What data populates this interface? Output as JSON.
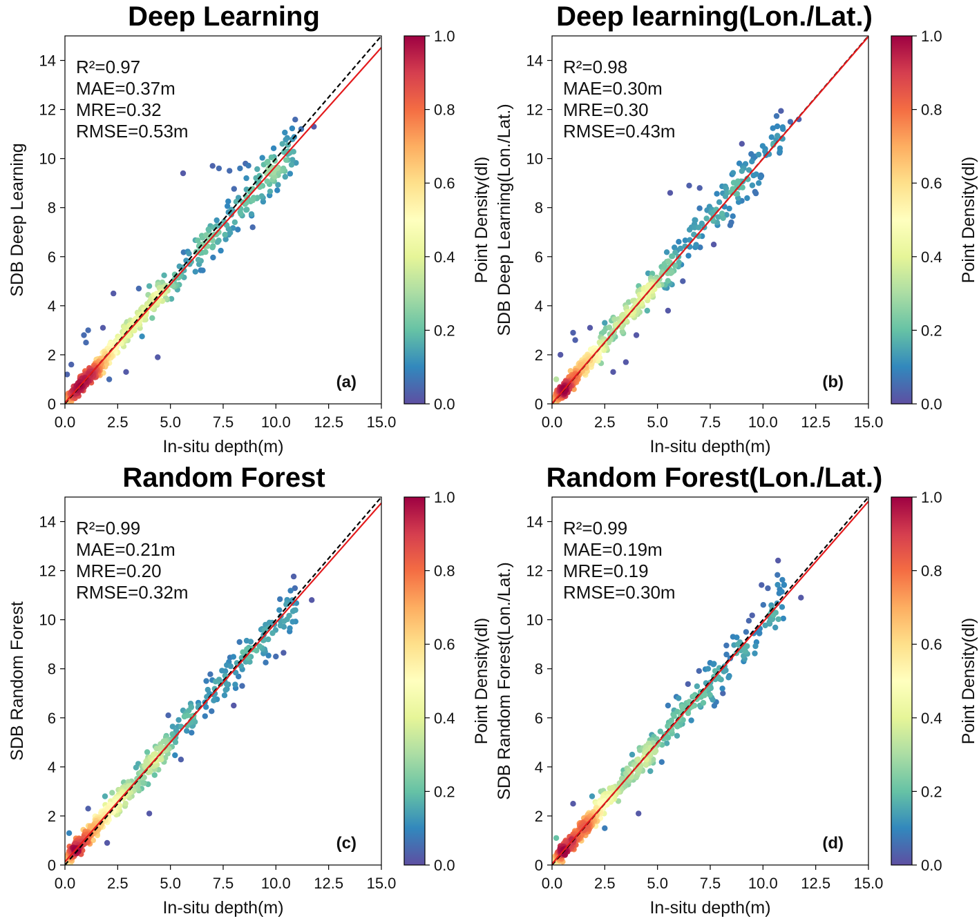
{
  "colorbar": {
    "label": "Point Density(dl)",
    "ticks": [
      "0.0",
      "0.2",
      "0.4",
      "0.6",
      "0.8",
      "1.0"
    ],
    "colors": [
      "#5e4fa2",
      "#3288bd",
      "#66c2a5",
      "#abdda4",
      "#e6f598",
      "#ffffbf",
      "#fee08b",
      "#fdae61",
      "#f46d43",
      "#d53e4f",
      "#9e0142"
    ]
  },
  "line_colors": {
    "fit": "#e31a1c",
    "identity": "#000000"
  },
  "chart_data": [
    {
      "type": "scatter",
      "title": "Deep Learning",
      "panel_label": "(a)",
      "xlabel": "In-situ depth(m)",
      "ylabel": "SDB Deep Learning",
      "xlim": [
        0,
        15
      ],
      "ylim": [
        0,
        15
      ],
      "xticks": [
        "0.0",
        "2.5",
        "5.0",
        "7.5",
        "10.0",
        "12.5",
        "15.0"
      ],
      "yticks": [
        "0",
        "2",
        "4",
        "6",
        "8",
        "10",
        "12",
        "14"
      ],
      "stats": [
        "R²=0.97",
        "MAE=0.37m",
        "MRE=0.32",
        "RMSE=0.53m"
      ],
      "fit": {
        "slope": 0.965,
        "intercept": 0.05
      },
      "identity_line": true,
      "outliers": [
        [
          5.6,
          9.4
        ],
        [
          2.3,
          4.5
        ],
        [
          7.0,
          9.7
        ],
        [
          7.3,
          9.6
        ],
        [
          7.8,
          9.5
        ],
        [
          8.3,
          9.6
        ],
        [
          8.6,
          9.2
        ],
        [
          0.9,
          2.8
        ],
        [
          1.1,
          3.0
        ],
        [
          1.8,
          3.1
        ],
        [
          1.0,
          2.5
        ],
        [
          2.9,
          1.3
        ],
        [
          4.4,
          1.9
        ],
        [
          9.7,
          8.5
        ],
        [
          8.9,
          7.2
        ],
        [
          10.1,
          9.5
        ],
        [
          11.2,
          11.2
        ],
        [
          11.8,
          11.3
        ],
        [
          3.5,
          4.7
        ],
        [
          4.0,
          4.8
        ],
        [
          0.1,
          1.2
        ],
        [
          0.3,
          1.6
        ],
        [
          2.1,
          1.0
        ]
      ]
    },
    {
      "type": "scatter",
      "title": "Deep learning(Lon./Lat.)",
      "panel_label": "(b)",
      "xlabel": "In-situ depth(m)",
      "ylabel": "SDB Deep Learning(Lon./Lat.)",
      "xlim": [
        0,
        15
      ],
      "ylim": [
        0,
        15
      ],
      "xticks": [
        "0.0",
        "2.5",
        "5.0",
        "7.5",
        "10.0",
        "12.5",
        "15.0"
      ],
      "yticks": [
        "0",
        "2",
        "4",
        "6",
        "8",
        "10",
        "12",
        "14"
      ],
      "stats": [
        "R²=0.98",
        "MAE=0.30m",
        "MRE=0.30",
        "RMSE=0.43m"
      ],
      "fit": {
        "slope": 0.997,
        "intercept": 0.02
      },
      "identity_line": true,
      "outliers": [
        [
          5.6,
          8.6
        ],
        [
          6.5,
          8.9
        ],
        [
          7.0,
          8.8
        ],
        [
          9.0,
          10.6
        ],
        [
          1.0,
          2.9
        ],
        [
          1.1,
          2.6
        ],
        [
          1.8,
          3.1
        ],
        [
          2.5,
          3.3
        ],
        [
          2.9,
          1.3
        ],
        [
          3.5,
          1.7
        ],
        [
          4.0,
          2.8
        ],
        [
          5.5,
          3.8
        ],
        [
          0.2,
          1.0
        ],
        [
          0.4,
          2.0
        ],
        [
          11.3,
          11.5
        ],
        [
          11.7,
          11.6
        ],
        [
          6.2,
          5.0
        ],
        [
          8.5,
          7.4
        ],
        [
          9.8,
          9.0
        ]
      ]
    },
    {
      "type": "scatter",
      "title": "Random Forest",
      "panel_label": "(c)",
      "xlabel": "In-situ depth(m)",
      "ylabel": "SDB Random Forest",
      "xlim": [
        0,
        15
      ],
      "ylim": [
        0,
        15
      ],
      "xticks": [
        "0.0",
        "2.5",
        "5.0",
        "7.5",
        "10.0",
        "12.5",
        "15.0"
      ],
      "yticks": [
        "0",
        "2",
        "4",
        "6",
        "8",
        "10",
        "12",
        "14"
      ],
      "stats": [
        "R²=0.99",
        "MAE=0.21m",
        "MRE=0.20",
        "RMSE=0.32m"
      ],
      "fit": {
        "slope": 0.975,
        "intercept": 0.13
      },
      "identity_line": true,
      "outliers": [
        [
          4.9,
          6.1
        ],
        [
          5.6,
          6.3
        ],
        [
          4.0,
          2.1
        ],
        [
          2.0,
          0.9
        ],
        [
          8.0,
          6.5
        ],
        [
          10.0,
          8.5
        ],
        [
          11.7,
          10.8
        ],
        [
          0.2,
          1.3
        ],
        [
          1.1,
          2.3
        ],
        [
          1.9,
          2.8
        ],
        [
          3.9,
          4.6
        ],
        [
          6.7,
          7.5
        ],
        [
          5.5,
          4.3
        ],
        [
          8.4,
          7.3
        ],
        [
          9.3,
          9.6
        ]
      ]
    },
    {
      "type": "scatter",
      "title": "Random Forest(Lon./Lat.)",
      "panel_label": "(d)",
      "xlabel": "In-situ depth(m)",
      "ylabel": "SDB Random Forest(Lon./Lat.)",
      "xlim": [
        0,
        15
      ],
      "ylim": [
        0,
        15
      ],
      "xticks": [
        "0.0",
        "2.5",
        "5.0",
        "7.5",
        "10.0",
        "12.5",
        "15.0"
      ],
      "yticks": [
        "0",
        "2",
        "4",
        "6",
        "8",
        "10",
        "12",
        "14"
      ],
      "stats": [
        "R²=0.99",
        "MAE=0.19m",
        "MRE=0.19",
        "RMSE=0.30m"
      ],
      "fit": {
        "slope": 0.985,
        "intercept": 0.05
      },
      "identity_line": true,
      "outliers": [
        [
          5.5,
          6.5
        ],
        [
          6.0,
          6.8
        ],
        [
          4.1,
          2.1
        ],
        [
          7.4,
          8.0
        ],
        [
          8.1,
          7.0
        ],
        [
          9.2,
          9.5
        ],
        [
          11.8,
          10.9
        ],
        [
          0.2,
          1.1
        ],
        [
          1.0,
          2.5
        ],
        [
          1.9,
          2.8
        ],
        [
          3.8,
          4.5
        ],
        [
          2.5,
          1.5
        ],
        [
          5.2,
          4.2
        ],
        [
          10.5,
          10.2
        ]
      ]
    }
  ]
}
